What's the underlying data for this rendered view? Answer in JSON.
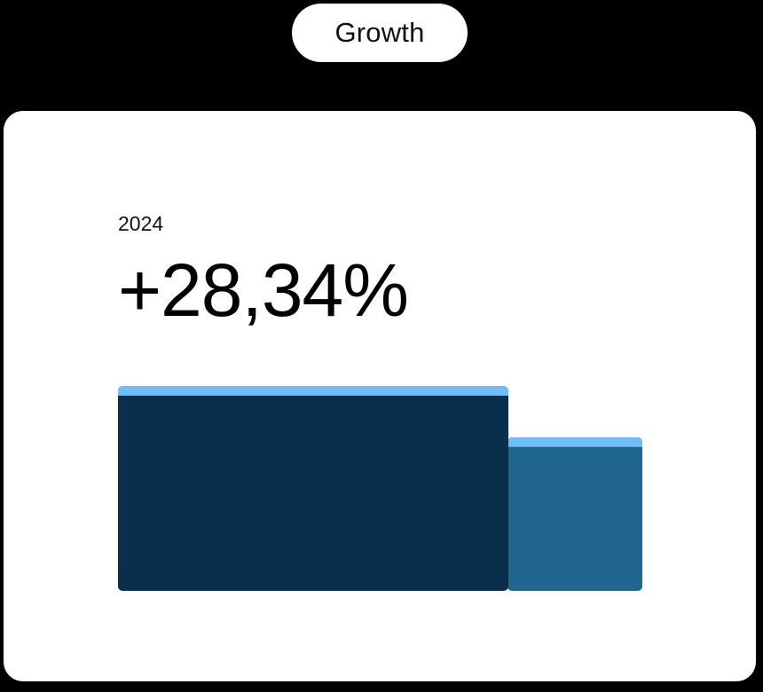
{
  "header": {
    "title": "Growth"
  },
  "card": {
    "year": "2024",
    "value": "+28,34%"
  },
  "colors": {
    "background": "#000000",
    "card": "#ffffff",
    "bar_primary": "#0a2f4c",
    "bar_secondary": "#21668f",
    "bar_cap": "#6ebdf6"
  },
  "chart_data": {
    "type": "bar",
    "categories": [
      "",
      ""
    ],
    "values": [
      100,
      75
    ],
    "title": "",
    "xlabel": "",
    "ylabel": "",
    "ylim": [
      0,
      100
    ],
    "grid": false,
    "legend": "none"
  }
}
